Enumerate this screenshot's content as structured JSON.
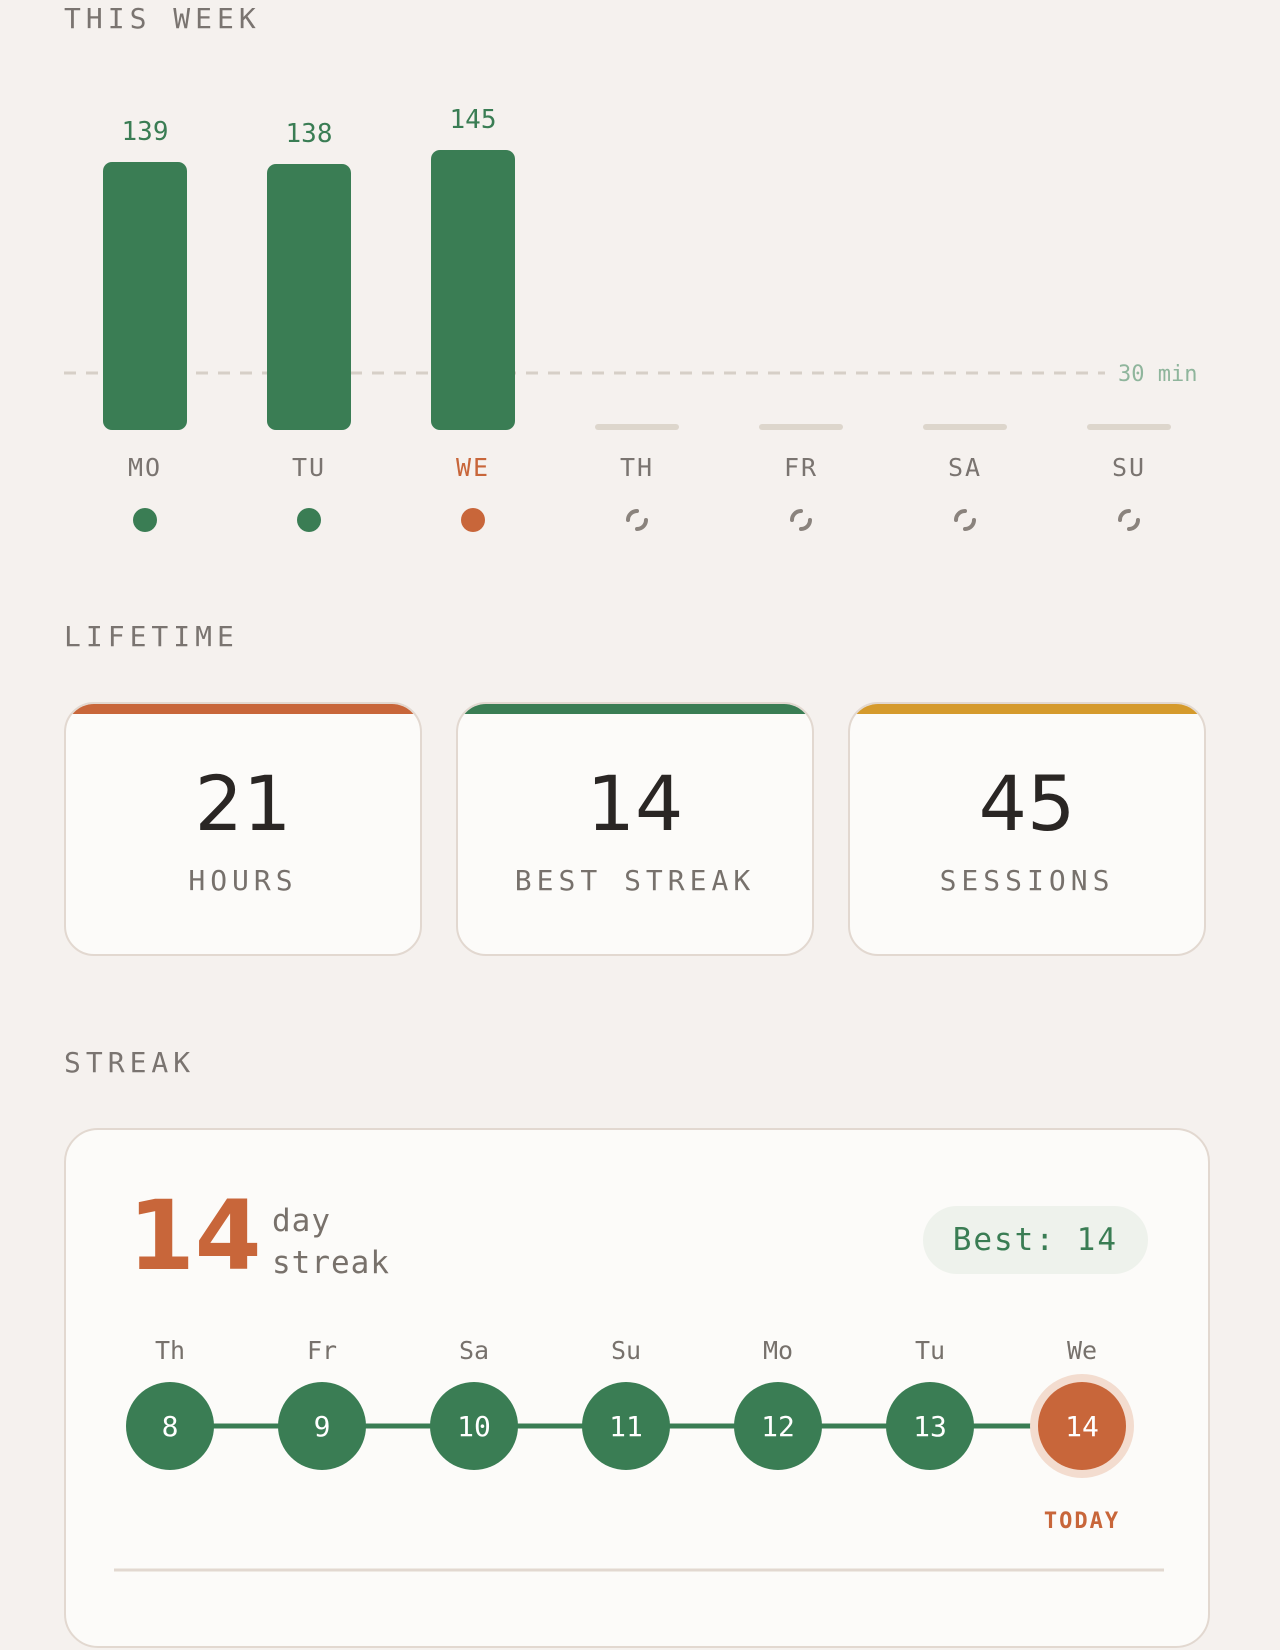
{
  "this_week": {
    "title": "THIS WEEK",
    "goal_label": "30 min",
    "goal_minutes": 30,
    "colors": {
      "bar": "#3a7d54",
      "today": "#c8663a",
      "empty": "#ddd6cc",
      "muted": "#7a7470"
    },
    "today_index": 2
  },
  "chart_data": {
    "type": "bar",
    "categories": [
      "MO",
      "TU",
      "WE",
      "TH",
      "FR",
      "SA",
      "SU"
    ],
    "values": [
      139,
      138,
      145,
      null,
      null,
      null,
      null
    ],
    "value_labels": [
      "139",
      "138",
      "145",
      "",
      "",
      "",
      ""
    ],
    "status": [
      "done",
      "done",
      "today",
      "pending",
      "pending",
      "pending",
      "pending"
    ],
    "ylim": [
      0,
      150
    ],
    "reference_line": {
      "value": 30,
      "label": "30 min"
    }
  },
  "lifetime": {
    "title": "LIFETIME",
    "cards": [
      {
        "value": "21",
        "label": "HOURS",
        "accent": "#c8663a"
      },
      {
        "value": "14",
        "label": "BEST STREAK",
        "accent": "#3a7d54"
      },
      {
        "value": "45",
        "label": "SESSIONS",
        "accent": "#d59a2c"
      }
    ]
  },
  "streak": {
    "title": "STREAK",
    "count": "14",
    "unit_line1": "day",
    "unit_line2": "streak",
    "best_label": "Best: 14",
    "days": [
      {
        "label": "Th",
        "num": "8"
      },
      {
        "label": "Fr",
        "num": "9"
      },
      {
        "label": "Sa",
        "num": "10"
      },
      {
        "label": "Su",
        "num": "11"
      },
      {
        "label": "Mo",
        "num": "12"
      },
      {
        "label": "Tu",
        "num": "13"
      },
      {
        "label": "We",
        "num": "14",
        "today": true
      }
    ],
    "today_label": "TODAY"
  }
}
